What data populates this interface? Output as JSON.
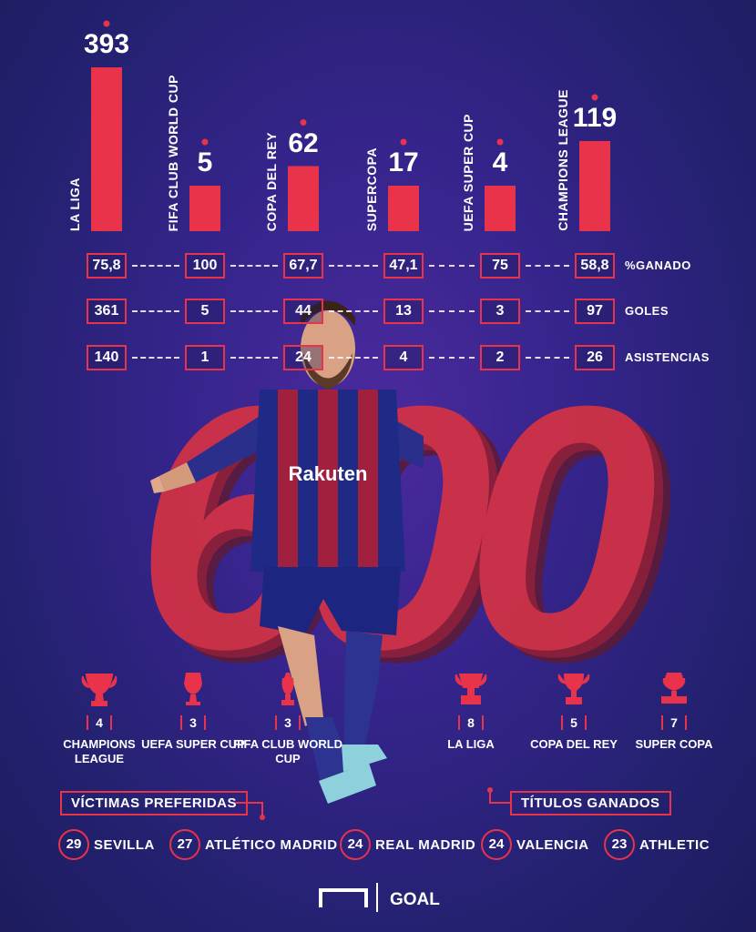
{
  "chart_data": {
    "type": "bar",
    "categories": [
      "LA LIGA",
      "FIFA CLUB WORLD CUP",
      "COPA DEL REY",
      "SUPERCOPA",
      "UEFA SUPER CUP",
      "CHAMPIONS LEAGUE"
    ],
    "values": [
      393,
      5,
      62,
      17,
      4,
      119
    ],
    "value_labels": [
      "393",
      "5",
      "62",
      "17",
      "4",
      "119"
    ],
    "colors": {
      "bar": "#e8334a",
      "marker": "#e8334a"
    }
  },
  "stats": {
    "rows": [
      {
        "label": "%GANADO",
        "values": [
          "75,8",
          "100",
          "67,7",
          "47,1",
          "75",
          "58,8"
        ]
      },
      {
        "label": "GOLES",
        "values": [
          "361",
          "5",
          "44",
          "13",
          "3",
          "97"
        ]
      },
      {
        "label": "ASISTENCIAS",
        "values": [
          "140",
          "1",
          "24",
          "4",
          "2",
          "26"
        ]
      }
    ]
  },
  "hero": {
    "number": "600"
  },
  "trophies": [
    {
      "count": "4",
      "name": "CHAMPIONS LEAGUE",
      "icon": "champions-trophy-icon"
    },
    {
      "count": "3",
      "name": "UEFA SUPER CUP",
      "icon": "super-cup-trophy-icon"
    },
    {
      "count": "3",
      "name": "FIFA CLUB WORLD CUP",
      "icon": "world-cup-trophy-icon"
    },
    {
      "count": "8",
      "name": "LA LIGA",
      "icon": "liga-trophy-icon"
    },
    {
      "count": "5",
      "name": "COPA DEL REY",
      "icon": "copa-trophy-icon"
    },
    {
      "count": "7",
      "name": "SUPER COPA",
      "icon": "supercopa-trophy-icon"
    }
  ],
  "sections": {
    "victims_title": "VÍCTIMAS PREFERIDAS",
    "titles_title": "TÍTULOS GANADOS"
  },
  "victims": [
    {
      "goals": "29",
      "team": "SEVILLA"
    },
    {
      "goals": "27",
      "team": "ATLÉTICO MADRID"
    },
    {
      "goals": "24",
      "team": "REAL MADRID"
    },
    {
      "goals": "24",
      "team": "VALENCIA"
    },
    {
      "goals": "23",
      "team": "ATHLETIC"
    }
  ],
  "brand": {
    "name": "GOAL",
    "icon": "goal-net-icon"
  },
  "palette": {
    "accent": "#e8334a",
    "background": "#2c2480",
    "text": "#ffffff"
  }
}
